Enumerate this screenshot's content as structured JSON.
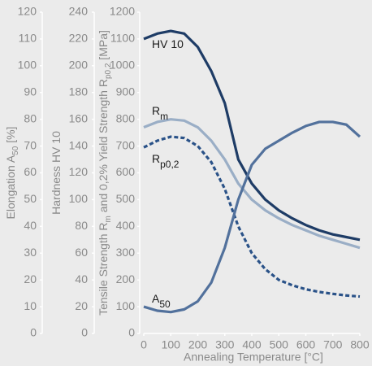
{
  "chart_data": {
    "type": "line",
    "xlabel": "Annealing Temperature [°C]",
    "x": [
      0,
      50,
      100,
      150,
      200,
      250,
      300,
      350,
      400,
      450,
      500,
      550,
      600,
      650,
      700,
      750,
      800
    ],
    "xlim": [
      0,
      800
    ],
    "xticks": [
      0,
      100,
      200,
      300,
      400,
      500,
      600,
      700,
      800
    ],
    "ylim": [
      0,
      1200
    ],
    "yticks": [
      0,
      100,
      200,
      300,
      400,
      500,
      600,
      700,
      800,
      900,
      1000,
      1100,
      1200
    ],
    "ylabel": [
      {
        "text": "Tensile Strength R",
        "sub": false
      },
      {
        "text": "m",
        "sub": true
      },
      {
        "text": " and 0,2% Yield Strength R",
        "sub": false
      },
      {
        "text": "p0,2",
        "sub": true
      },
      {
        "text": " [MPa]",
        "sub": false
      }
    ],
    "y2lim": [
      0,
      240
    ],
    "y2ticks": [
      0,
      20,
      40,
      60,
      80,
      100,
      120,
      140,
      160,
      180,
      200,
      220,
      240
    ],
    "y2label": [
      {
        "text": "Hardness HV 10",
        "sub": false
      }
    ],
    "y3lim": [
      0,
      120
    ],
    "y3ticks": [
      0,
      10,
      20,
      30,
      40,
      50,
      60,
      70,
      80,
      90,
      100,
      110,
      120
    ],
    "y3label": [
      {
        "text": "Elongation A",
        "sub": false
      },
      {
        "text": "50",
        "sub": true
      },
      {
        "text": " [%]",
        "sub": false
      }
    ],
    "series": [
      {
        "name": "HV 10",
        "color": "#1e3c66",
        "axis": "y2",
        "dashed": false,
        "values": [
          220,
          224,
          226,
          224,
          214,
          196,
          172,
          130,
          112,
          100,
          92,
          86,
          81,
          77,
          74,
          72,
          70
        ]
      },
      {
        "name": "R",
        "name_sub": "m",
        "color": "#9aaec6",
        "axis": "y",
        "dashed": false,
        "values": [
          770,
          790,
          800,
          795,
          770,
          720,
          650,
          560,
          500,
          460,
          430,
          405,
          385,
          365,
          350,
          335,
          320
        ]
      },
      {
        "name": "R",
        "name_sub": "p0,2",
        "color": "#2a5288",
        "axis": "y",
        "dashed": true,
        "values": [
          695,
          720,
          735,
          730,
          700,
          640,
          540,
          400,
          300,
          240,
          200,
          180,
          165,
          155,
          148,
          142,
          138
        ]
      },
      {
        "name": "A",
        "name_sub": "50",
        "color": "#52719c",
        "axis": "y3",
        "dashed": false,
        "values": [
          10,
          8.5,
          8,
          9,
          12,
          19,
          32,
          50,
          63,
          69,
          72,
          75,
          77.5,
          79,
          79,
          78,
          73.5
        ]
      }
    ]
  }
}
